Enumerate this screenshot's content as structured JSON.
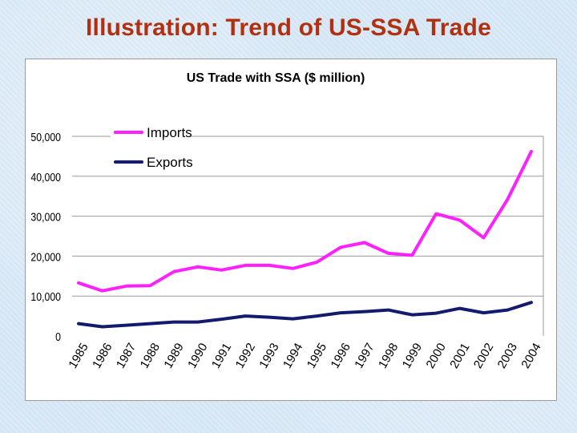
{
  "slide": {
    "title": "Illustration: Trend of US-SSA Trade"
  },
  "colors": {
    "title": "#b03010",
    "imports": "#ff20ff",
    "exports": "#141a6e",
    "grid": "#9a9a9a",
    "background": "#d8e8f6"
  },
  "chart_data": {
    "type": "line",
    "title": "US Trade with SSA ($ million)",
    "xlabel": "",
    "ylabel": "",
    "categories": [
      "1985",
      "1986",
      "1987",
      "1988",
      "1989",
      "1990",
      "1991",
      "1992",
      "1993",
      "1994",
      "1995",
      "1996",
      "1997",
      "1998",
      "1999",
      "2000",
      "2001",
      "2002",
      "2003",
      "2004"
    ],
    "series": [
      {
        "name": "Imports",
        "color": "#ff20ff",
        "values": [
          13300,
          11300,
          12500,
          12600,
          16100,
          17300,
          16500,
          17700,
          17700,
          16900,
          18500,
          22200,
          23400,
          20700,
          20200,
          30600,
          29000,
          24600,
          34200,
          46200
        ]
      },
      {
        "name": "Exports",
        "color": "#141a6e",
        "values": [
          3100,
          2300,
          2700,
          3100,
          3500,
          3500,
          4200,
          5000,
          4700,
          4300,
          5000,
          5800,
          6100,
          6500,
          5300,
          5700,
          6900,
          5800,
          6500,
          8400
        ]
      }
    ],
    "ylim": [
      0,
      50000
    ],
    "yticks": [
      0,
      10000,
      20000,
      30000,
      40000,
      50000
    ],
    "ytick_labels": [
      "0",
      "10,000",
      "20,000",
      "30,000",
      "40,000",
      "50,000"
    ],
    "grid": true,
    "legend_position": "top-left"
  }
}
